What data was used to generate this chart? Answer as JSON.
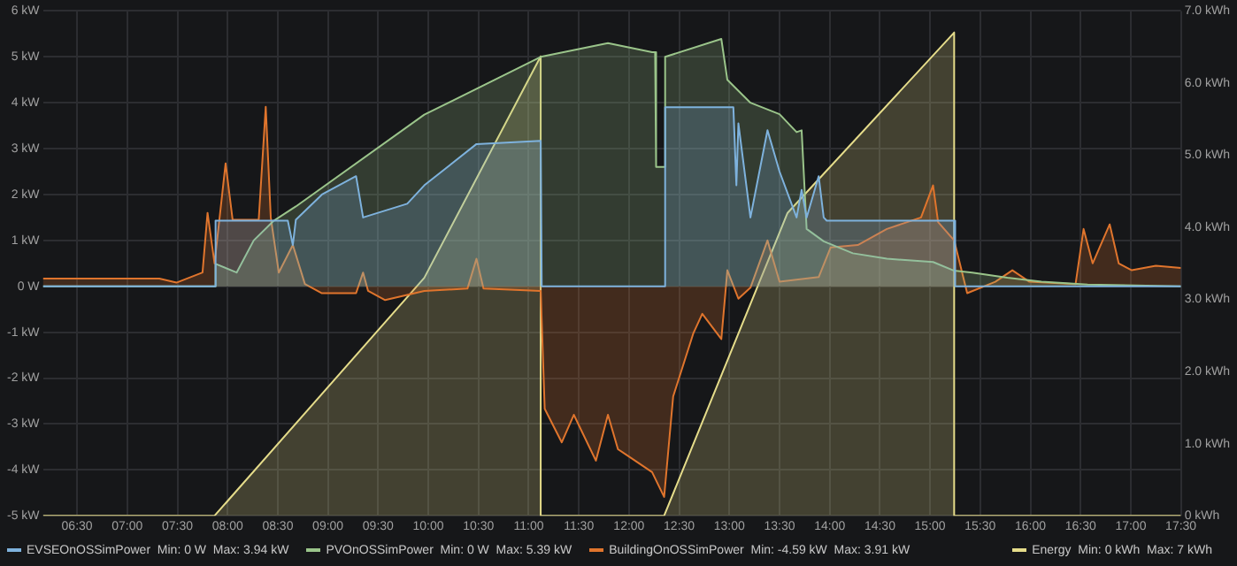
{
  "chart_data": {
    "type": "area",
    "xlim": [
      6.16,
      17.5
    ],
    "xticks": [
      {
        "value": 6.5,
        "label": "06:30"
      },
      {
        "value": 7,
        "label": "07:00"
      },
      {
        "value": 7.5,
        "label": "07:30"
      },
      {
        "value": 8,
        "label": "08:00"
      },
      {
        "value": 8.5,
        "label": "08:30"
      },
      {
        "value": 9,
        "label": "09:00"
      },
      {
        "value": 9.5,
        "label": "09:30"
      },
      {
        "value": 10,
        "label": "10:00"
      },
      {
        "value": 10.5,
        "label": "10:30"
      },
      {
        "value": 11,
        "label": "11:00"
      },
      {
        "value": 11.5,
        "label": "11:30"
      },
      {
        "value": 12,
        "label": "12:00"
      },
      {
        "value": 12.5,
        "label": "12:30"
      },
      {
        "value": 13,
        "label": "13:00"
      },
      {
        "value": 13.5,
        "label": "13:30"
      },
      {
        "value": 14,
        "label": "14:00"
      },
      {
        "value": 14.5,
        "label": "14:30"
      },
      {
        "value": 15,
        "label": "15:00"
      },
      {
        "value": 15.5,
        "label": "15:30"
      },
      {
        "value": 16,
        "label": "16:00"
      },
      {
        "value": 16.5,
        "label": "16:30"
      },
      {
        "value": 17,
        "label": "17:00"
      },
      {
        "value": 17.5,
        "label": "17:30"
      }
    ],
    "ylim": [
      -5,
      6
    ],
    "yticks": [
      {
        "value": 6,
        "label": "6 kW"
      },
      {
        "value": 5,
        "label": "5 kW"
      },
      {
        "value": 4,
        "label": "4 kW"
      },
      {
        "value": 3,
        "label": "3 kW"
      },
      {
        "value": 2,
        "label": "2 kW"
      },
      {
        "value": 1,
        "label": "1 kW"
      },
      {
        "value": 0,
        "label": "0 W"
      },
      {
        "value": -1,
        "label": "-1 kW"
      },
      {
        "value": -2,
        "label": "-2 kW"
      },
      {
        "value": -3,
        "label": "-3 kW"
      },
      {
        "value": -4,
        "label": "-4 kW"
      },
      {
        "value": -5,
        "label": "-5 kW"
      }
    ],
    "y2lim": [
      0,
      7
    ],
    "y2ticks": [
      {
        "value": 0,
        "label": "0 kWh"
      },
      {
        "value": 1,
        "label": "1.0 kWh"
      },
      {
        "value": 2,
        "label": "2.0 kWh"
      },
      {
        "value": 3,
        "label": "3.0 kWh"
      },
      {
        "value": 4,
        "label": "4.0 kWh"
      },
      {
        "value": 5,
        "label": "5.0 kWh"
      },
      {
        "value": 6,
        "label": "6.0 kWh"
      },
      {
        "value": 7,
        "label": "7.0 kWh"
      }
    ],
    "grid": true,
    "legend": "bottom",
    "series": [
      {
        "name": "EVSEOnOSSimPower  Min: 0 W  Max: 3.94 kW",
        "color": "#7eb2dd",
        "x": [
          6.16,
          7.87,
          7.88,
          8.6,
          8.65,
          8.68,
          8.94,
          9.28,
          9.35,
          9.79,
          9.96,
          10.48,
          11.12,
          11.13,
          12.35,
          12.36,
          13.04,
          13.07,
          13.09,
          13.21,
          13.38,
          13.5,
          13.67,
          13.72,
          13.77,
          13.89,
          13.94,
          13.97,
          15.24,
          15.25,
          17.5
        ],
        "values": [
          0,
          0,
          1.43,
          1.43,
          0.9,
          1.45,
          2.0,
          2.4,
          1.5,
          1.8,
          2.2,
          3.1,
          3.17,
          0,
          0,
          3.9,
          3.9,
          2.2,
          3.55,
          1.5,
          3.4,
          2.5,
          1.5,
          2.1,
          1.5,
          2.4,
          1.5,
          1.43,
          1.43,
          0,
          0
        ]
      },
      {
        "name": "PVOnOSSimPower  Min: 0 W  Max: 5.39 kW",
        "color": "#9ac48a",
        "x": [
          6.16,
          7.87,
          7.88,
          8.09,
          8.26,
          8.46,
          8.68,
          9.96,
          11.12,
          11.79,
          12.23,
          12.26,
          12.27,
          12.35,
          12.36,
          12.92,
          12.98,
          13.21,
          13.5,
          13.67,
          13.72,
          13.77,
          13.94,
          14.23,
          14.57,
          15.03,
          15.24,
          15.42,
          15.77,
          16.11,
          16.57,
          17.5
        ],
        "values": [
          0,
          0,
          0.49,
          0.3,
          1.0,
          1.43,
          1.74,
          3.74,
          5.0,
          5.3,
          5.1,
          5.1,
          2.6,
          2.6,
          5.0,
          5.39,
          4.5,
          4.0,
          3.75,
          3.36,
          3.4,
          1.25,
          0.98,
          0.72,
          0.6,
          0.53,
          0.34,
          0.3,
          0.19,
          0.1,
          0.04,
          0
        ]
      },
      {
        "name": "BuildingOnOSSimPower  Min: -4.59 kW  Max: 3.91 kW",
        "color": "#e0752d",
        "x": [
          6.16,
          7.32,
          7.49,
          7.75,
          7.8,
          7.87,
          7.98,
          8.05,
          8.31,
          8.38,
          8.43,
          8.51,
          8.65,
          8.77,
          8.94,
          9.28,
          9.35,
          9.4,
          9.57,
          9.96,
          10.39,
          10.48,
          10.55,
          11.12,
          11.16,
          11.33,
          11.45,
          11.67,
          11.79,
          11.89,
          12.06,
          12.23,
          12.35,
          12.44,
          12.64,
          12.73,
          12.92,
          12.98,
          13.09,
          13.21,
          13.38,
          13.5,
          13.89,
          14.01,
          14.28,
          14.57,
          14.91,
          15.03,
          15.08,
          15.24,
          15.37,
          15.65,
          15.82,
          15.99,
          16.45,
          16.53,
          16.62,
          16.79,
          16.88,
          17.01,
          17.25,
          17.5
        ],
        "values": [
          0.17,
          0.17,
          0.08,
          0.3,
          1.6,
          0.5,
          2.68,
          1.45,
          1.45,
          3.91,
          1.5,
          0.3,
          0.9,
          0.05,
          -0.15,
          -0.15,
          0.3,
          -0.1,
          -0.3,
          -0.1,
          -0.05,
          0.6,
          -0.05,
          -0.1,
          -2.67,
          -3.4,
          -2.8,
          -3.8,
          -2.8,
          -3.55,
          -3.8,
          -4.05,
          -4.59,
          -2.4,
          -1.03,
          -0.6,
          -1.15,
          0.35,
          -0.27,
          -0.03,
          1.0,
          0.1,
          0.2,
          0.85,
          0.9,
          1.25,
          1.5,
          2.2,
          1.4,
          1.0,
          -0.15,
          0.1,
          0.35,
          0.1,
          0.05,
          1.25,
          0.5,
          1.35,
          0.5,
          0.35,
          0.45,
          0.4
        ]
      },
      {
        "name": "Energy  Min: 0 kWh  Max: 7 kWh",
        "color": "#e5dc8a",
        "axis": "y2",
        "x": [
          6.16,
          7.87,
          9.96,
          11.12,
          11.12,
          12.35,
          13.58,
          15.24,
          15.24,
          17.5
        ],
        "values": [
          0,
          0,
          3.3,
          6.37,
          0,
          0,
          4.2,
          6.7,
          0,
          0
        ]
      }
    ]
  }
}
